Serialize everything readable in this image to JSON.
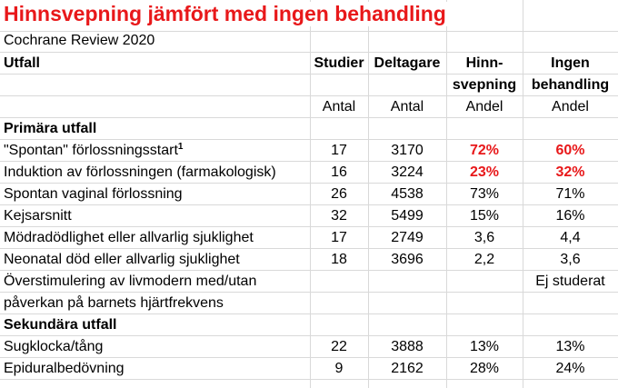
{
  "title": "Hinnsvepning jämfört med ingen behandling",
  "subtitle": "Cochrane Review 2020",
  "header": {
    "outcome": "Utfall",
    "studies": "Studier",
    "participants": "Deltagare",
    "membrane_line1": "Hinn-",
    "membrane_line2": "svepning",
    "none_line1": "Ingen",
    "none_line2": "behandling"
  },
  "units": {
    "studies": "Antal",
    "participants": "Antal",
    "membrane": "Andel",
    "none": "Andel"
  },
  "primary_heading": "Primära utfall",
  "primary_rows": [
    {
      "label": "\"Spontan\" förlossningsstart",
      "sup": "1",
      "studies": "17",
      "participants": "3170",
      "membrane": "72%",
      "none": "60%",
      "highlight": true
    },
    {
      "label": "Induktion av förlossningen (farmakologisk)",
      "sup": "",
      "studies": "16",
      "participants": "3224",
      "membrane": "23%",
      "none": "32%",
      "highlight": true
    },
    {
      "label": "Spontan vaginal förlossning",
      "sup": "",
      "studies": "26",
      "participants": "4538",
      "membrane": "73%",
      "none": "71%",
      "highlight": false
    },
    {
      "label": "Kejsarsnitt",
      "sup": "",
      "studies": "32",
      "participants": "5499",
      "membrane": "15%",
      "none": "16%",
      "highlight": false
    },
    {
      "label": "Mödradödlighet eller allvarlig sjuklighet",
      "sup": "",
      "studies": "17",
      "participants": "2749",
      "membrane": "3,6",
      "none": "4,4",
      "highlight": false
    },
    {
      "label": "Neonatal död eller allvarlig sjuklighet",
      "sup": "",
      "studies": "18",
      "participants": "3696",
      "membrane": "2,2",
      "none": "3,6",
      "highlight": false
    }
  ],
  "overstim": {
    "line1": "Överstimulering av livmodern med/utan",
    "line2": "påverkan på barnets hjärtfrekvens",
    "note": "Ej studerat"
  },
  "secondary_heading": "Sekundära utfall",
  "secondary_rows": [
    {
      "label": "Sugklocka/tång",
      "studies": "22",
      "participants": "3888",
      "membrane": "13%",
      "none": "13%"
    },
    {
      "label": "Epiduralbedövning",
      "studies": "9",
      "participants": "2162",
      "membrane": "28%",
      "none": "24%"
    }
  ]
}
